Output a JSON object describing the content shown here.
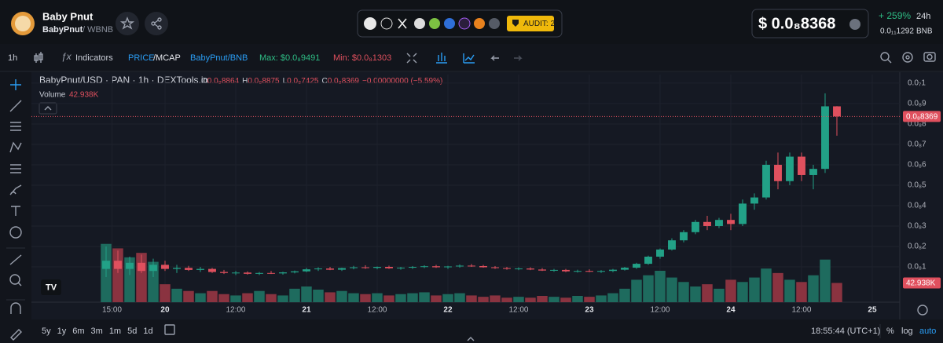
{
  "header": {
    "name": "Baby Pnut",
    "pair_base": "BabyPnut",
    "pair_quote": "/ WBNB",
    "audit": "AUDIT: 2",
    "price": "$ 0.0₈8368",
    "change": "+ 259%",
    "change_period": "24h",
    "price_bnb": "0.0₁₁1292",
    "bnb": "BNB"
  },
  "toolbar": {
    "interval": "1h",
    "indicators": "Indicators",
    "price": "PRICE",
    "mcap": "/MCAP",
    "pair": "BabyPnut/BNB",
    "max": "Max: $0.0₈9491",
    "min": "Min: $0.0₈1303"
  },
  "legend": {
    "symbol": "BabyPnut/USD · PAN · 1h · DEXTools.io",
    "o_label": "O",
    "o": "0.0₈8864",
    "h_label": "H",
    "h": "0.0₈8875",
    "l_label": "L",
    "l": "0.0₈7425",
    "c_label": "C",
    "c": "0.0₈8369",
    "change": "−0.00000000 (−5.59%)",
    "volume_label": "Volume"
  },
  "chart_data": {
    "type": "candlestick",
    "x": [
      14,
      16,
      18,
      20,
      22,
      24,
      26,
      28,
      30,
      32,
      34,
      36,
      38,
      40,
      42,
      44,
      46,
      48,
      50,
      52,
      54,
      56,
      58,
      60,
      62,
      64,
      66,
      68,
      70,
      72,
      74,
      76,
      78,
      80,
      82,
      84,
      86,
      88,
      90,
      92,
      94,
      96,
      98,
      100,
      102,
      104,
      106,
      108,
      110,
      112,
      114,
      116,
      118,
      120,
      122,
      124,
      126,
      128,
      130,
      132,
      134,
      136,
      138
    ],
    "open": [
      9e-10,
      1.3e-09,
      9e-10,
      1.2e-09,
      8e-10,
      1.1e-09,
      9e-10,
      9.5e-10,
      8.5e-10,
      9e-10,
      7.5e-10,
      7e-10,
      7.2e-10,
      6.6e-10,
      7e-10,
      6.8e-10,
      7.3e-10,
      7.8e-10,
      8.8e-10,
      9.2e-10,
      8.6e-10,
      9.4e-10,
      9.8e-10,
      9.5e-10,
      1e-09,
      9.3e-10,
      9.6e-10,
      1e-09,
      1.03e-09,
      9.8e-10,
      1.02e-09,
      1.06e-09,
      1.04e-09,
      9.8e-10,
      9.4e-10,
      9e-10,
      9.2e-10,
      8.7e-10,
      8.2e-10,
      8.5e-10,
      7.8e-10,
      8e-10,
      7.6e-10,
      8e-10,
      8.6e-10,
      9.6e-10,
      1.15e-09,
      1.5e-09,
      1.85e-09,
      2.3e-09,
      2.7e-09,
      3.2e-09,
      3e-09,
      3.3e-09,
      3.1e-09,
      4.1e-09,
      4.4e-09,
      6e-09,
      5.2e-09,
      6.4e-09,
      5.5e-09,
      5.8e-09,
      8.864e-09
    ],
    "high": [
      2e-09,
      1.8e-09,
      1.5e-09,
      1.6e-09,
      1.4e-09,
      1.3e-09,
      1.1e-09,
      1.05e-09,
      1e-09,
      9.5e-10,
      8.5e-10,
      8e-10,
      7.8e-10,
      7.5e-10,
      8e-10,
      7.6e-10,
      8.2e-10,
      9.5e-10,
      9.8e-10,
      1e-09,
      9.6e-10,
      1.05e-09,
      1.08e-09,
      1.02e-09,
      1.06e-09,
      1e-09,
      1.04e-09,
      1.08e-09,
      1.1e-09,
      1.05e-09,
      1.12e-09,
      1.14e-09,
      1.1e-09,
      1.04e-09,
      1e-09,
      9.8e-10,
      9.8e-10,
      9.4e-10,
      9e-10,
      9e-10,
      8.6e-10,
      8.8e-10,
      8.4e-10,
      9e-10,
      1e-09,
      1.2e-09,
      1.55e-09,
      1.9e-09,
      2.4e-09,
      2.8e-09,
      3.3e-09,
      3.5e-09,
      3.4e-09,
      3.6e-09,
      4.3e-09,
      4.6e-09,
      6.2e-09,
      6.6e-09,
      6.6e-09,
      6.6e-09,
      6e-09,
      9.5e-09,
      8.875e-09
    ],
    "low": [
      5e-10,
      7e-10,
      6e-10,
      7e-10,
      5e-10,
      8e-10,
      7e-10,
      8e-10,
      7.5e-10,
      7e-10,
      6.5e-10,
      6e-10,
      6.2e-10,
      6e-10,
      6.5e-10,
      6.2e-10,
      6.8e-10,
      7.4e-10,
      8e-10,
      8.4e-10,
      8e-10,
      8.8e-10,
      9e-10,
      8.8e-10,
      9e-10,
      8.6e-10,
      9e-10,
      9.4e-10,
      9.5e-10,
      9e-10,
      9.6e-10,
      1e-09,
      9.6e-10,
      9e-10,
      8.6e-10,
      8.4e-10,
      8.4e-10,
      8e-10,
      7.6e-10,
      7.4e-10,
      7.2e-10,
      7.4e-10,
      7e-10,
      7.4e-10,
      8.2e-10,
      9e-10,
      1.1e-09,
      1.4e-09,
      1.8e-09,
      2.2e-09,
      2.6e-09,
      2.8e-09,
      2.9e-09,
      2.8e-09,
      3e-09,
      3.8e-09,
      4.3e-09,
      4.8e-09,
      5e-09,
      5.2e-09,
      4.8e-09,
      5.6e-09,
      7.425e-09
    ],
    "close": [
      1.3e-09,
      9e-10,
      1.2e-09,
      8e-10,
      1.1e-09,
      9e-10,
      9.5e-10,
      8.5e-10,
      9e-10,
      7.5e-10,
      7e-10,
      7.2e-10,
      6.6e-10,
      7e-10,
      6.8e-10,
      7.3e-10,
      7.8e-10,
      8.8e-10,
      9.2e-10,
      8.6e-10,
      9.4e-10,
      9.8e-10,
      9.5e-10,
      1e-09,
      9.3e-10,
      9.6e-10,
      1e-09,
      1.03e-09,
      9.8e-10,
      1.02e-09,
      1.06e-09,
      1.04e-09,
      9.8e-10,
      9.4e-10,
      9e-10,
      9.2e-10,
      8.7e-10,
      8.2e-10,
      8.5e-10,
      7.8e-10,
      8e-10,
      7.6e-10,
      8e-10,
      8.6e-10,
      9.6e-10,
      1.15e-09,
      1.5e-09,
      1.85e-09,
      2.3e-09,
      2.7e-09,
      3.2e-09,
      3e-09,
      3.3e-09,
      3.1e-09,
      4.1e-09,
      4.4e-09,
      6e-09,
      5.2e-09,
      6.4e-09,
      5.5e-09,
      5.8e-09,
      8.864e-09,
      8.369e-09
    ],
    "volume": [
      130,
      120,
      100,
      110,
      90,
      40,
      30,
      25,
      20,
      25,
      18,
      15,
      20,
      25,
      18,
      15,
      30,
      35,
      28,
      22,
      25,
      20,
      18,
      20,
      15,
      18,
      20,
      22,
      15,
      18,
      20,
      15,
      12,
      15,
      10,
      12,
      10,
      14,
      12,
      10,
      14,
      12,
      15,
      20,
      30,
      50,
      60,
      70,
      55,
      45,
      35,
      40,
      30,
      50,
      45,
      55,
      75,
      65,
      50,
      45,
      60,
      95,
      42.938
    ],
    "volume_label": "42.938K",
    "last_price_label": "0.0₈8369",
    "up_color": "#22a187",
    "down_color": "#e0505e",
    "up_volume_color": "#1e6b5e",
    "down_volume_color": "#8a3340",
    "xlim": [
      2,
      148.67
    ],
    "ylim": [
      -7.3e-10,
      1.042e-08
    ],
    "volume_ylim": [
      0,
      140
    ],
    "yticks": [
      {
        "value": 1e-09,
        "label": "0.0₈1"
      },
      {
        "value": 2e-09,
        "label": "0.0₈2"
      },
      {
        "value": 3e-09,
        "label": "0.0₈3"
      },
      {
        "value": 4e-09,
        "label": "0.0₈4"
      },
      {
        "value": 5e-09,
        "label": "0.0₈5"
      },
      {
        "value": 6e-09,
        "label": "0.0₈6"
      },
      {
        "value": 7e-09,
        "label": "0.0₈7"
      },
      {
        "value": 8e-09,
        "label": "0.0₈8"
      },
      {
        "value": 9e-09,
        "label": "0.0₈9"
      },
      {
        "value": 1e-08,
        "label": "0.0₇1"
      }
    ],
    "xticks": [
      {
        "value": 15,
        "label": "15:00"
      },
      {
        "value": 24,
        "label": "20"
      },
      {
        "value": 36,
        "label": "12:00"
      },
      {
        "value": 48,
        "label": "21"
      },
      {
        "value": 60,
        "label": "12:00"
      },
      {
        "value": 72,
        "label": "22"
      },
      {
        "value": 84,
        "label": "12:00"
      },
      {
        "value": 96,
        "label": "23"
      },
      {
        "value": 108,
        "label": "12:00"
      },
      {
        "value": 120,
        "label": "24"
      },
      {
        "value": 132,
        "label": "12:00"
      },
      {
        "value": 144,
        "label": "25"
      }
    ],
    "grid": true
  },
  "footer": {
    "ranges": [
      "5y",
      "1y",
      "6m",
      "3m",
      "1m",
      "5d",
      "1d"
    ],
    "time": "18:55:44 (UTC+1)",
    "percent": "%",
    "log": "log",
    "auto": "auto"
  }
}
